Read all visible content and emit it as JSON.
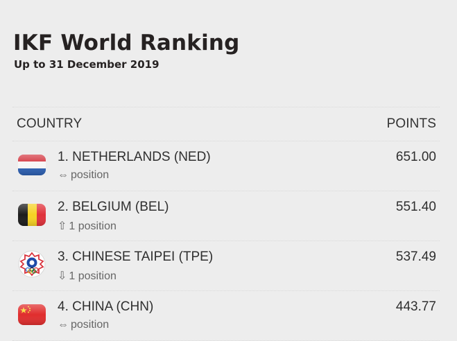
{
  "header": {
    "title": "IKF World Ranking",
    "subtitle": "Up to 31 December 2019"
  },
  "table": {
    "columns": {
      "country": "COUNTRY",
      "points": "POINTS"
    },
    "rows": [
      {
        "name": "1. NETHERLANDS (NED)",
        "arrow": "⇔",
        "change": "position",
        "points": "651.00",
        "flag_icon": "netherlands-flag-icon"
      },
      {
        "name": "2. BELGIUM (BEL)",
        "arrow": "⇧",
        "change": "1 position",
        "points": "551.40",
        "flag_icon": "belgium-flag-icon"
      },
      {
        "name": "3. CHINESE TAIPEI (TPE)",
        "arrow": "⇩",
        "change": "1 position",
        "points": "537.49",
        "flag_icon": "chinese-taipei-flag-icon"
      },
      {
        "name": "4. CHINA (CHN)",
        "arrow": "⇔",
        "change": "position",
        "points": "443.77",
        "flag_icon": "china-flag-icon"
      }
    ]
  }
}
